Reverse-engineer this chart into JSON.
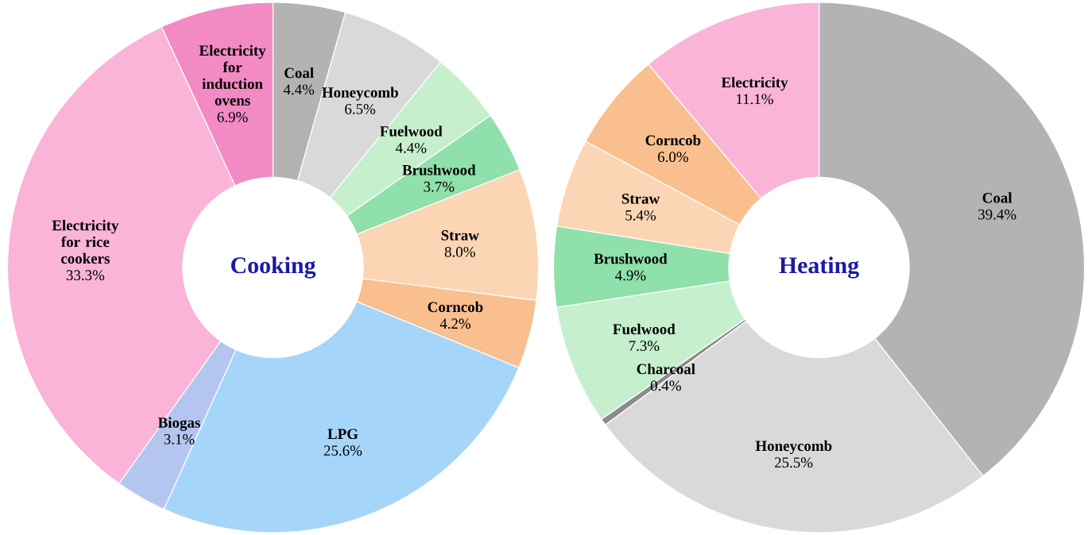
{
  "chart_data": [
    {
      "type": "donut",
      "title": "Cooking",
      "categories": [
        "Coal",
        "Honeycomb",
        "Fuelwood",
        "Brushwood",
        "Straw",
        "Corncob",
        "LPG",
        "Biogas",
        "Electricity for rice cookers",
        "Electricity for induction ovens"
      ],
      "values": [
        4.4,
        6.5,
        4.4,
        3.7,
        8.0,
        4.2,
        25.6,
        3.1,
        33.3,
        6.9
      ],
      "value_labels": [
        "4.4%",
        "6.5%",
        "4.4%",
        "3.7%",
        "8.0%",
        "4.2%",
        "25.6%",
        "3.1%",
        "33.3%",
        "6.9%"
      ],
      "colors": [
        "#b3b3b3",
        "#d9d9d9",
        "#c6efce",
        "#8fe0aa",
        "#fcd5b4",
        "#f9bf8f",
        "#a6d5fa",
        "#b4c6f0",
        "#f9b4d8",
        "#f28ac4"
      ]
    },
    {
      "type": "donut",
      "title": "Heating",
      "categories": [
        "Coal",
        "Honeycomb",
        "Charcoal",
        "Fuelwood",
        "Brushwood",
        "Straw",
        "Corncob",
        "Electricity"
      ],
      "values": [
        39.4,
        25.5,
        0.4,
        7.3,
        4.9,
        5.4,
        6.0,
        11.1
      ],
      "value_labels": [
        "39.4%",
        "25.5%",
        "0.4%",
        "7.3%",
        "4.9%",
        "5.4%",
        "6.0%",
        "11.1%"
      ],
      "colors": [
        "#b3b3b3",
        "#d9d9d9",
        "#8c8c8c",
        "#c6efce",
        "#8fe0aa",
        "#fcd5b4",
        "#f9bf8f",
        "#f9b4d8"
      ]
    }
  ]
}
